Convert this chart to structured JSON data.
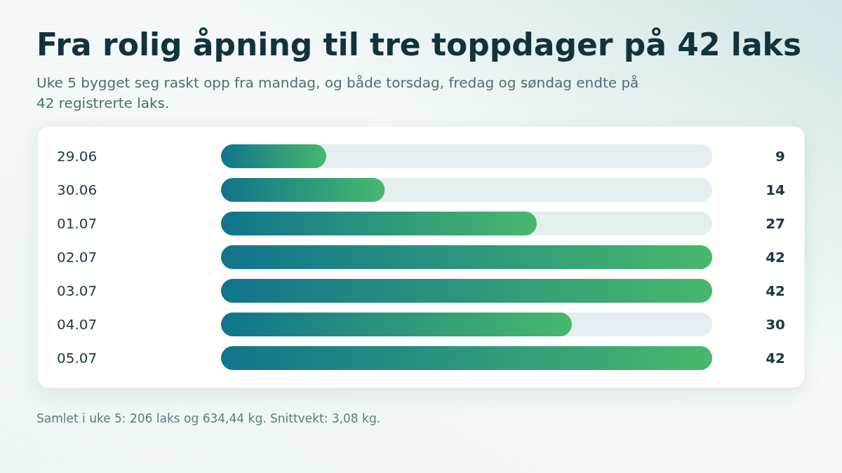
{
  "chart_data": {
    "type": "bar",
    "orientation": "horizontal",
    "title": "Fra rolig åpning til tre toppdager på 42 laks",
    "subtitle": "Uke 5 bygget seg raskt opp fra mandag, og både torsdag, fredag og søndag endte på 42 registrerte laks.",
    "categories": [
      "29.06",
      "30.06",
      "01.07",
      "02.07",
      "03.07",
      "04.07",
      "05.07"
    ],
    "values": [
      9,
      14,
      27,
      42,
      42,
      30,
      42
    ],
    "color": "#48b86c",
    "xlim": [
      0,
      42
    ],
    "data_labels": true,
    "annotations": [
      "Samlet i uke 5: 206 laks og 634,44 kg. Snittvekt: 3,08 kg."
    ]
  }
}
